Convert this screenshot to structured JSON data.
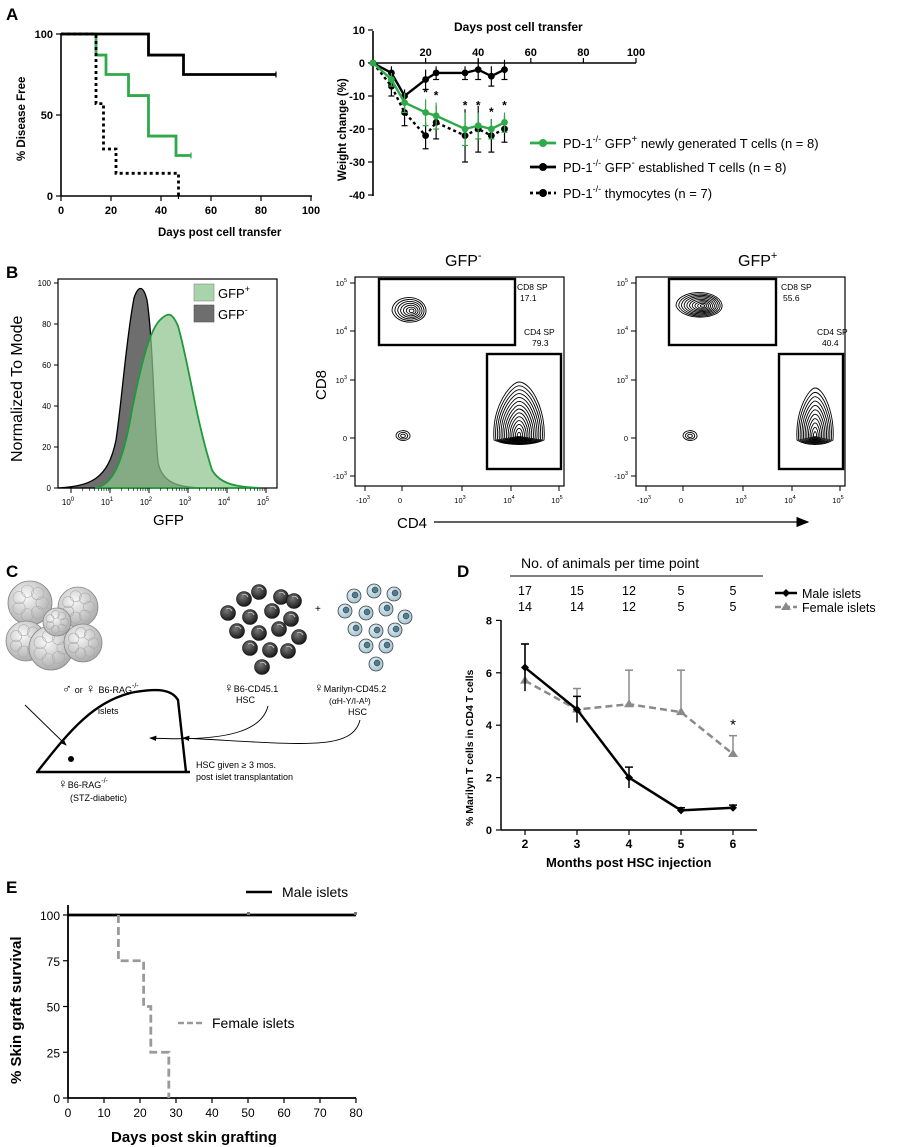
{
  "panels": {
    "A": {
      "label": "A",
      "survival": {
        "ylabel": "% Disease Free",
        "xlabel": "Days post cell transfer",
        "xticks": [
          "0",
          "20",
          "40",
          "60",
          "80",
          "100"
        ],
        "yticks": [
          "0",
          "50",
          "100"
        ]
      },
      "weight": {
        "ylabel": "Weight change (%)",
        "xlabel": "Days post cell transfer",
        "xticks": [
          "20",
          "40",
          "60",
          "80",
          "100"
        ],
        "yticks": [
          "10",
          "0",
          "-10",
          "-20",
          "-30",
          "-40"
        ],
        "star": "*",
        "legend": [
          {
            "name": "PD-1-/- GFP+ newly generated T cells (n = 8)",
            "pre": "PD-1",
            "sup1": "-/-",
            "mid": " GFP",
            "sup2": "+",
            "post": " newly generated T cells (n = 8)"
          },
          {
            "name": "PD-1-/- GFP- established T cells (n = 8)",
            "pre": "PD-1",
            "sup1": "-/-",
            "mid": " GFP",
            "sup2": "-",
            "post": " established T cells (n = 8)"
          },
          {
            "name": "PD-1-/- thymocytes (n = 7)",
            "pre": "PD-1",
            "sup1": "-/-",
            "mid": " thymocytes (n = 7)",
            "sup2": "",
            "post": ""
          }
        ]
      }
    },
    "B": {
      "label": "B",
      "histogram": {
        "ylabel": "Normalized To Mode",
        "xlabel": "GFP",
        "yticks": [
          "0",
          "20",
          "40",
          "60",
          "80",
          "100"
        ],
        "legend_pos": "GFP",
        "legend_pos_sup": "+",
        "legend_neg": "GFP",
        "legend_neg_sup": "-"
      },
      "contour_neg": {
        "title": "GFP",
        "title_sup": "-",
        "cd8_label": "CD8 SP",
        "cd8_value": "17.1",
        "cd4_label": "CD4 SP",
        "cd4_value": "79.3"
      },
      "contour_pos": {
        "title": "GFP",
        "title_sup": "+",
        "cd8_label": "CD8 SP",
        "cd8_value": "55.6",
        "cd4_label": "CD4 SP",
        "cd4_value": "40.4"
      },
      "axis_y": "CD8",
      "axis_x": "CD4",
      "log_ticks": {
        "base": "10",
        "e0": "0",
        "e1": "1",
        "e2": "2",
        "e3": "3",
        "e4": "4",
        "e5": "5",
        "neg3": "-10",
        "neg3_e": "3"
      }
    },
    "C": {
      "label": "C",
      "islets_line1": "or",
      "islets_strain": "B6-RAG",
      "islets_sup": "-/-",
      "islets_line2": "islets",
      "male_symbol": "♂",
      "female_symbol": "♀",
      "hsc1_line1": "B6-CD45.1",
      "hsc1_line2": "HSC",
      "plus": "+",
      "hsc2_line1": "Marilyn-CD45.2",
      "hsc2_line2": "(αH-Y/I-Aᵇ)",
      "hsc2_line3": "HSC",
      "hsc_note_line1": "HSC given ≥ 3 mos.",
      "hsc_note_line2": "post islet transplantation",
      "recipient_line1": "B6-RAG",
      "recipient_sup": "-/-",
      "recipient_line2": "(STZ-diabetic)"
    },
    "D": {
      "label": "D",
      "table_title": "No. of animals per time point",
      "male_counts": [
        "17",
        "15",
        "12",
        "5",
        "5"
      ],
      "female_counts": [
        "14",
        "14",
        "12",
        "5",
        "5"
      ],
      "legend_male": "Male islets",
      "legend_female": "Female islets",
      "star": "*"
    },
    "E": {
      "label": "E",
      "legend_male": "Male islets",
      "legend_female": "Female islets"
    }
  },
  "chart_data": [
    {
      "id": "A-survival",
      "type": "line",
      "title": "",
      "xlabel": "Days post cell transfer",
      "ylabel": "% Disease Free",
      "xlim": [
        0,
        100
      ],
      "ylim": [
        0,
        100
      ],
      "series": [
        {
          "name": "PD-1-/- GFP+ newly generated T cells",
          "color": "#2eaa4a",
          "style": "solid",
          "step": true,
          "x": [
            0,
            14,
            14,
            18,
            18,
            27,
            27,
            35,
            35,
            46,
            46,
            52
          ],
          "y": [
            100,
            100,
            87,
            87,
            75,
            75,
            62,
            62,
            37,
            37,
            25,
            25
          ]
        },
        {
          "name": "PD-1-/- GFP- established T cells",
          "color": "#000000",
          "style": "solid",
          "step": true,
          "x": [
            0,
            35,
            35,
            49,
            49,
            86
          ],
          "y": [
            100,
            100,
            87,
            87,
            75,
            75
          ]
        },
        {
          "name": "PD-1-/- thymocytes",
          "color": "#000000",
          "style": "dotted",
          "step": true,
          "x": [
            0,
            14,
            14,
            17,
            17,
            22,
            22,
            47,
            47
          ],
          "y": [
            100,
            100,
            57,
            57,
            29,
            29,
            14,
            14,
            0
          ]
        }
      ]
    },
    {
      "id": "A-weight",
      "type": "line",
      "title": "",
      "xlabel": "Days post cell transfer",
      "ylabel": "Weight change (%)",
      "xlim": [
        0,
        100
      ],
      "ylim": [
        -40,
        10
      ],
      "series": [
        {
          "name": "PD-1-/- GFP+ newly generated T cells (n = 8)",
          "color": "#2eaa4a",
          "style": "solid",
          "x": [
            0,
            7,
            12,
            20,
            24,
            35,
            40,
            45,
            50
          ],
          "y": [
            0,
            -5,
            -12,
            -15,
            -16,
            -20,
            -19,
            -20,
            -18
          ],
          "err": [
            0,
            2,
            3,
            4,
            4,
            5,
            4,
            3,
            3
          ]
        },
        {
          "name": "PD-1-/- GFP- established T cells (n = 8)",
          "color": "#000000",
          "style": "solid",
          "x": [
            0,
            7,
            12,
            20,
            24,
            35,
            40,
            45,
            50
          ],
          "y": [
            0,
            -3,
            -10,
            -5,
            -3,
            -3,
            -2,
            -4,
            -2
          ],
          "err": [
            0,
            2,
            2,
            3,
            2,
            2,
            3,
            3,
            3
          ]
        },
        {
          "name": "PD-1-/- thymocytes (n = 7)",
          "color": "#000000",
          "style": "dotted",
          "x": [
            0,
            7,
            12,
            20,
            24,
            35,
            40,
            45,
            50
          ],
          "y": [
            0,
            -7,
            -15,
            -22,
            -18,
            -22,
            -20,
            -22,
            -20
          ],
          "err": [
            0,
            3,
            4,
            4,
            5,
            8,
            7,
            5,
            4
          ]
        }
      ],
      "significance_x": [
        20,
        24,
        35,
        40,
        45,
        50
      ]
    },
    {
      "id": "D",
      "type": "line",
      "xlabel": "Months post HSC injection",
      "ylabel": "% Marilyn T cells in CD4 T cells",
      "x": [
        2,
        3,
        4,
        5,
        6
      ],
      "ylim": [
        0,
        8
      ],
      "yticks": [
        0,
        2,
        4,
        6,
        8
      ],
      "series": [
        {
          "name": "Male islets",
          "color": "#000000",
          "style": "solid",
          "values": [
            6.2,
            4.6,
            2.0,
            0.75,
            0.85
          ],
          "err": [
            0.9,
            0.5,
            0.4,
            0.1,
            0.1
          ]
        },
        {
          "name": "Female islets",
          "color": "#8a8a8a",
          "style": "dashed",
          "values": [
            5.7,
            4.6,
            4.8,
            4.5,
            2.9
          ],
          "err": [
            1.4,
            0.8,
            1.3,
            1.6,
            0.7
          ]
        }
      ],
      "significance_x": [
        6
      ]
    },
    {
      "id": "E",
      "type": "line",
      "xlabel": "Days post skin grafting",
      "ylabel": "% Skin graft survival",
      "xlim": [
        0,
        80
      ],
      "ylim": [
        0,
        100
      ],
      "xticks": [
        0,
        10,
        20,
        30,
        40,
        50,
        60,
        70,
        80
      ],
      "yticks": [
        0,
        25,
        50,
        75,
        100
      ],
      "series": [
        {
          "name": "Male islets",
          "color": "#000000",
          "style": "solid",
          "step": true,
          "x": [
            0,
            80
          ],
          "y": [
            100,
            100
          ]
        },
        {
          "name": "Female islets",
          "color": "#9a9a9a",
          "style": "dashed",
          "step": true,
          "x": [
            14,
            14,
            21,
            21,
            23,
            23,
            28,
            28
          ],
          "y": [
            100,
            75,
            75,
            50,
            50,
            25,
            25,
            0
          ]
        }
      ]
    }
  ]
}
